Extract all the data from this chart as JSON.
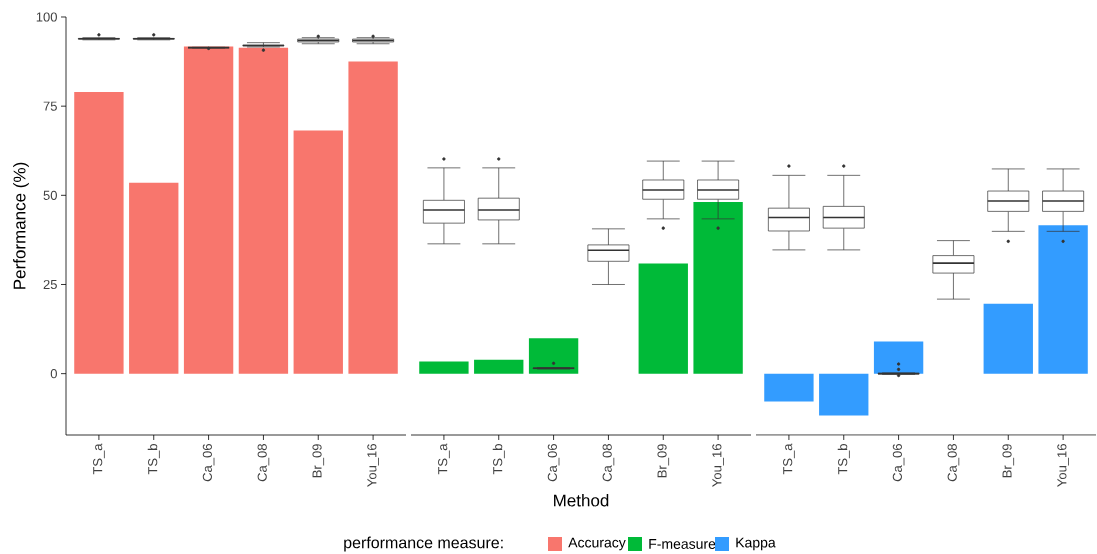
{
  "chart_data": [
    {
      "type": "bar",
      "categories": [
        "TS_a",
        "TS_b",
        "Ca_06",
        "Ca_08",
        "Br_09",
        "You_16"
      ],
      "ylabel": "Performance (%)",
      "ylim": [
        -17.2,
        100
      ],
      "yticks": [
        0,
        25,
        50,
        75,
        100
      ],
      "grid": false,
      "legend": "bottom",
      "legend_title": "performance measure:",
      "series": [
        {
          "type": "bar",
          "name": "Accuracy",
          "color": "#f8766d",
          "values": [
            79.0,
            53.5,
            91.7,
            91.4,
            68.2,
            87.5
          ]
        },
        {
          "type": "box",
          "color": "#333333",
          "boxes": [
            {
              "low": 93.6,
              "q1": 93.8,
              "median": 93.9,
              "q3": 94.0,
              "high": 94.2,
              "outliers": [
                95.0
              ]
            },
            {
              "low": 93.6,
              "q1": 93.8,
              "median": 93.9,
              "q3": 94.0,
              "high": 94.2,
              "outliers": [
                95.0
              ]
            },
            {
              "low": 91.3,
              "q1": 91.4,
              "median": 91.4,
              "q3": 91.4,
              "high": 91.5,
              "outliers": [
                91.2
              ]
            },
            {
              "low": 91.6,
              "q1": 91.9,
              "median": 92.0,
              "q3": 92.1,
              "high": 92.8,
              "outliers": [
                90.7
              ]
            },
            {
              "low": 92.5,
              "q1": 93.0,
              "median": 93.4,
              "q3": 93.8,
              "high": 94.2,
              "outliers": [
                94.6
              ]
            },
            {
              "low": 92.5,
              "q1": 93.0,
              "median": 93.4,
              "q3": 93.8,
              "high": 94.2,
              "outliers": [
                94.6
              ]
            }
          ]
        }
      ]
    },
    {
      "type": "bar",
      "categories": [
        "TS_a",
        "TS_b",
        "Ca_06",
        "Ca_08",
        "Br_09",
        "You_16"
      ],
      "xlabel": "Method",
      "ylim": [
        -17.2,
        100
      ],
      "yticks": [
        0,
        25,
        50,
        75,
        100
      ],
      "tick_labels": "x",
      "grid": false,
      "series": [
        {
          "type": "bar",
          "name": "F-measure",
          "color": "#00ba38",
          "values": [
            3.4,
            3.9,
            9.9,
            null,
            30.9,
            48.1
          ]
        },
        {
          "type": "box",
          "color": "#333333",
          "boxes": [
            {
              "low": 36.4,
              "q1": 42.2,
              "median": 45.9,
              "q3": 48.6,
              "high": 57.7,
              "outliers": [
                60.2
              ]
            },
            {
              "low": 36.4,
              "q1": 43.1,
              "median": 45.9,
              "q3": 49.2,
              "high": 57.7,
              "outliers": [
                60.2
              ]
            },
            {
              "low": 1.3,
              "q1": 1.4,
              "median": 1.5,
              "q3": 1.6,
              "high": 1.7,
              "outliers": [
                2.9
              ]
            },
            {
              "low": 25.0,
              "q1": 31.5,
              "median": 34.6,
              "q3": 36.1,
              "high": 40.6
            },
            {
              "low": 43.4,
              "q1": 48.9,
              "median": 51.5,
              "q3": 54.3,
              "high": 59.6,
              "outliers": [
                40.8
              ]
            },
            {
              "low": 43.4,
              "q1": 48.9,
              "median": 51.5,
              "q3": 54.3,
              "high": 59.6,
              "outliers": [
                40.8
              ]
            }
          ]
        }
      ]
    },
    {
      "type": "bar",
      "categories": [
        "TS_a",
        "TS_b",
        "Ca_06",
        "Ca_08",
        "Br_09",
        "You_16"
      ],
      "ylim": [
        -17.2,
        100
      ],
      "yticks": [
        0,
        25,
        50,
        75,
        100
      ],
      "tick_labels": "x",
      "grid": false,
      "series": [
        {
          "type": "bar",
          "name": "Kappa",
          "color": "#339cff",
          "values": [
            -7.8,
            -11.7,
            9.0,
            null,
            19.6,
            41.6
          ]
        },
        {
          "type": "box",
          "color": "#333333",
          "boxes": [
            {
              "low": 34.7,
              "q1": 40.0,
              "median": 43.8,
              "q3": 46.4,
              "high": 55.6,
              "outliers": [
                58.2
              ]
            },
            {
              "low": 34.7,
              "q1": 40.8,
              "median": 43.8,
              "q3": 46.9,
              "high": 55.6,
              "outliers": [
                58.2
              ]
            },
            {
              "low": -0.2,
              "q1": -0.1,
              "median": 0.0,
              "q3": 0.1,
              "high": 0.2,
              "outliers": [
                2.7,
                1.2,
                -0.5
              ]
            },
            {
              "low": 20.9,
              "q1": 28.2,
              "median": 31.0,
              "q3": 33.1,
              "high": 37.3
            },
            {
              "low": 39.9,
              "q1": 45.5,
              "median": 48.4,
              "q3": 51.2,
              "high": 57.4,
              "outliers": [
                37.1
              ]
            },
            {
              "low": 39.9,
              "q1": 45.5,
              "median": 48.4,
              "q3": 51.2,
              "high": 57.4,
              "outliers": [
                37.1
              ]
            }
          ]
        }
      ]
    }
  ]
}
